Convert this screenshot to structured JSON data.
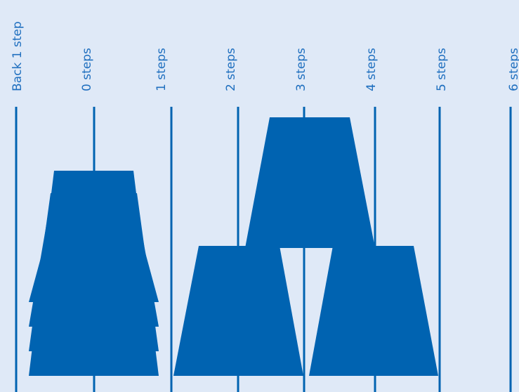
{
  "colors": {
    "background": "#dfe9f7",
    "line": "#0063b1",
    "cup": "#0063b1",
    "label": "#1f6fbf"
  },
  "step_lines": [
    {
      "label": "Back 1 step"
    },
    {
      "label": "0 steps"
    },
    {
      "label": "1 steps"
    },
    {
      "label": "2 steps"
    },
    {
      "label": "3 steps"
    },
    {
      "label": "4 steps"
    },
    {
      "label": "5 steps"
    },
    {
      "label": "6 steps"
    }
  ]
}
